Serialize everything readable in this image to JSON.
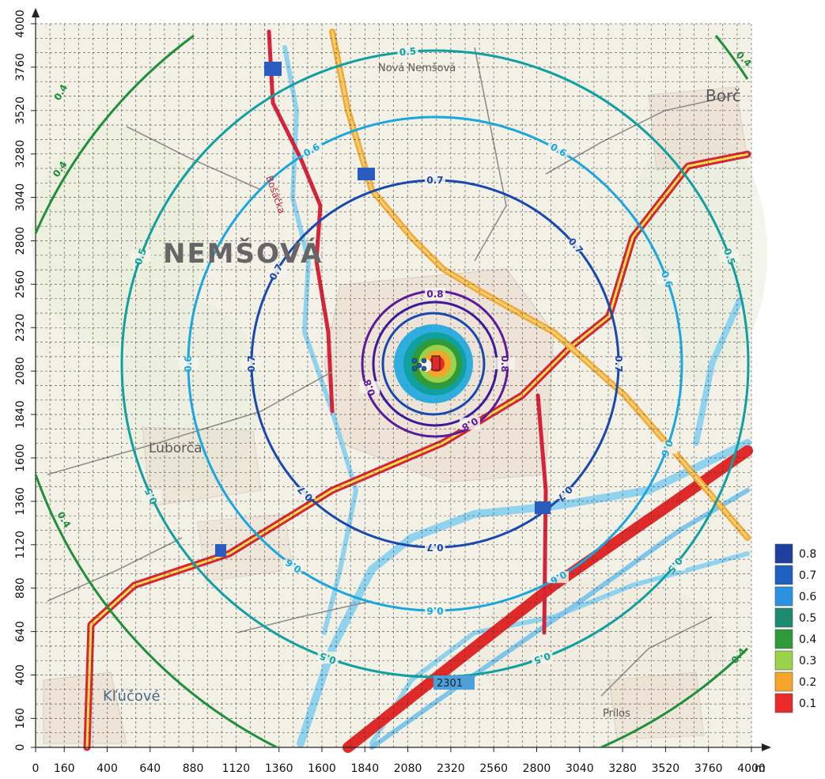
{
  "map": {
    "unit": "m",
    "x_ticks": [
      "0",
      "160",
      "400",
      "640",
      "880",
      "1120",
      "1360",
      "1600",
      "1840",
      "2080",
      "2320",
      "2560",
      "2800",
      "3040",
      "3280",
      "3520",
      "3760",
      "4000"
    ],
    "y_ticks": [
      "0",
      "160",
      "400",
      "640",
      "880",
      "1120",
      "1360",
      "1600",
      "1840",
      "2080",
      "2320",
      "2560",
      "2800",
      "3040",
      "3280",
      "3520",
      "3760",
      "4000"
    ],
    "place_names": [
      {
        "id": "nemsova",
        "text": "NEMŠOVÁ"
      },
      {
        "id": "nova-nemsova",
        "text": "Nová Nemšová"
      },
      {
        "id": "luborca",
        "text": "Ľuborča"
      },
      {
        "id": "klucove",
        "text": "Kľúčové"
      },
      {
        "id": "borcice",
        "text": "Borč"
      },
      {
        "id": "prilosi",
        "text": "Prílos"
      },
      {
        "id": "bosaca",
        "text": "Bošáčka"
      }
    ],
    "road_numbers": [
      "2301"
    ],
    "contours": [
      {
        "value": "0.4",
        "color": "#1f8f3a",
        "labels": [
          "0.4",
          "0.4",
          "0.4",
          "0.4",
          "0.4"
        ]
      },
      {
        "value": "0.5",
        "color": "#11a0a0",
        "labels": [
          "0.5",
          "0.5",
          "0.5",
          "0.5",
          "0.5",
          "0.5",
          "0.5"
        ]
      },
      {
        "value": "0.6",
        "color": "#1aa6df",
        "labels": [
          "0.6",
          "0.6",
          "0.6",
          "0.6",
          "0.6",
          "0.6",
          "0.6",
          "0.6"
        ]
      },
      {
        "value": "0.7",
        "color": "#1848b0",
        "labels": [
          "0.7",
          "0.7",
          "0.7",
          "0.7",
          "0.7",
          "0.7",
          "0.7",
          "0.7"
        ]
      },
      {
        "value": "0.8",
        "color": "#5a1a9a",
        "labels": [
          "0.8",
          "0.8",
          "0.8",
          "0.8"
        ]
      }
    ],
    "legend": [
      {
        "label": "0.8",
        "color": "#1f3f9f"
      },
      {
        "label": "0.7",
        "color": "#1f5fbf"
      },
      {
        "label": "0.6",
        "color": "#2a92df"
      },
      {
        "label": "0.5",
        "color": "#1c8a6e"
      },
      {
        "label": "0.4",
        "color": "#2f9a3a"
      },
      {
        "label": "0.3",
        "color": "#9bd24a"
      },
      {
        "label": "0.2",
        "color": "#f5a52a"
      },
      {
        "label": "0.1",
        "color": "#e82a2a"
      }
    ]
  }
}
